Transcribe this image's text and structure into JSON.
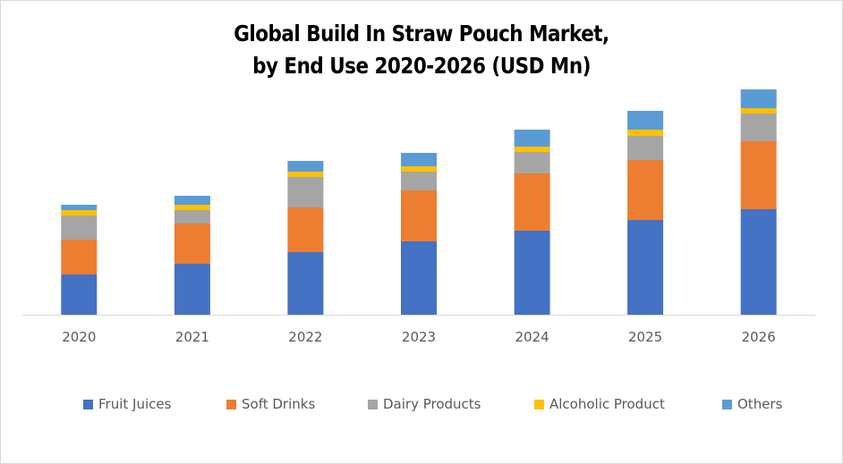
{
  "chart_data": {
    "type": "bar",
    "stacked": true,
    "title": "Global Build In Straw Pouch Market, by End Use 2020-2026 (USD Mn)",
    "title_lines": [
      "Global Build In Straw Pouch Market,",
      "by End Use 2020-2026 (USD Mn)"
    ],
    "xlabel": "",
    "ylabel": "",
    "ylim": [
      0,
      260
    ],
    "grid": false,
    "y_axis_visible": false,
    "legend_position": "bottom",
    "categories": [
      "2020",
      "2021",
      "2022",
      "2023",
      "2024",
      "2025",
      "2026"
    ],
    "series": [
      {
        "name": "Fruit Juices",
        "color": "#4472c4",
        "values": [
          45,
          57,
          70,
          82,
          94,
          106,
          118
        ]
      },
      {
        "name": "Soft Drinks",
        "color": "#ed7d31",
        "values": [
          39,
          45,
          50,
          57,
          64,
          67,
          76
        ]
      },
      {
        "name": "Dairy Products",
        "color": "#a5a5a5",
        "values": [
          27,
          15,
          34,
          21,
          24,
          27,
          31
        ]
      },
      {
        "name": "Alcoholic Product",
        "color": "#ffc000",
        "values": [
          6,
          6,
          6,
          6,
          6,
          7,
          6
        ]
      },
      {
        "name": "Others",
        "color": "#5b9bd5",
        "values": [
          6,
          10,
          12,
          15,
          19,
          21,
          21
        ]
      }
    ]
  },
  "colors": {
    "axis_line": "#d9d9d9",
    "tick_text": "#595959",
    "frame_border": "#d9d9d9"
  }
}
